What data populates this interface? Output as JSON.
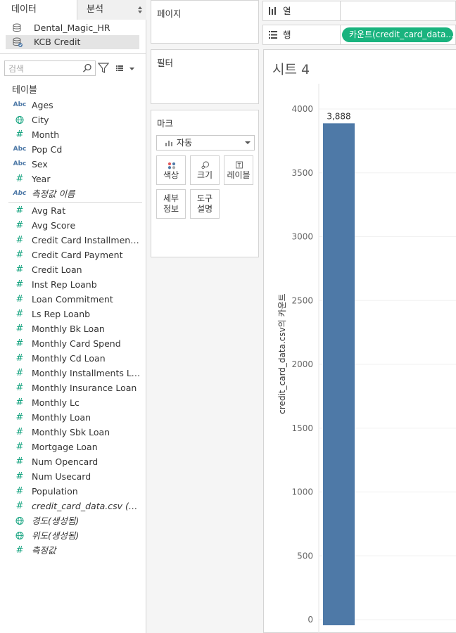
{
  "tabs": {
    "data": "데이터",
    "analysis": "분석"
  },
  "sources": [
    {
      "name": "Dental_Magic_HR",
      "selected": false
    },
    {
      "name": "KCB Credit",
      "selected": true
    }
  ],
  "search": {
    "placeholder": "검색"
  },
  "tables_label": "테이블",
  "fields_dimensions": [
    {
      "type": "abc",
      "name": "Ages"
    },
    {
      "type": "globe",
      "name": "City"
    },
    {
      "type": "hash",
      "name": "Month"
    },
    {
      "type": "abc",
      "name": "Pop Cd"
    },
    {
      "type": "abc",
      "name": "Sex"
    },
    {
      "type": "hash",
      "name": "Year"
    },
    {
      "type": "abc",
      "name": "측정값 이름",
      "italic": true
    }
  ],
  "fields_measures": [
    {
      "type": "hash",
      "name": "Avg Rat"
    },
    {
      "type": "hash",
      "name": "Avg Score"
    },
    {
      "type": "hash",
      "name": "Credit Card Installments P..."
    },
    {
      "type": "hash",
      "name": "Credit Card Payment"
    },
    {
      "type": "hash",
      "name": "Credit Loan"
    },
    {
      "type": "hash",
      "name": "Inst Rep Loanb"
    },
    {
      "type": "hash",
      "name": "Loan Commitment"
    },
    {
      "type": "hash",
      "name": "Ls Rep Loanb"
    },
    {
      "type": "hash",
      "name": "Monthly Bk Loan"
    },
    {
      "type": "hash",
      "name": "Monthly Card Spend"
    },
    {
      "type": "hash",
      "name": "Monthly Cd Loan"
    },
    {
      "type": "hash",
      "name": "Monthly Installments Loan"
    },
    {
      "type": "hash",
      "name": "Monthly Insurance Loan"
    },
    {
      "type": "hash",
      "name": "Monthly Lc"
    },
    {
      "type": "hash",
      "name": "Monthly Loan"
    },
    {
      "type": "hash",
      "name": "Monthly Sbk Loan"
    },
    {
      "type": "hash",
      "name": "Mortgage Loan"
    },
    {
      "type": "hash",
      "name": "Num Opencard"
    },
    {
      "type": "hash",
      "name": "Num Usecard"
    },
    {
      "type": "hash",
      "name": "Population"
    },
    {
      "type": "hash",
      "name": "credit_card_data.csv (카운트)",
      "italic": true
    },
    {
      "type": "globe",
      "name": "경도(생성됨)",
      "italic": true
    },
    {
      "type": "globe",
      "name": "위도(생성됨)",
      "italic": true
    },
    {
      "type": "hash",
      "name": "측정값",
      "italic": true
    }
  ],
  "shelves": {
    "pages": "페이지",
    "filters": "필터",
    "marks": "마크",
    "columns": "열",
    "rows": "행",
    "rows_pill": "카운트(credit_card_data..."
  },
  "marks": {
    "type": "자동",
    "buttons": {
      "color": "색상",
      "size": "크기",
      "label": "레이블",
      "detail": [
        "세부",
        "정보"
      ],
      "tooltip": [
        "도구",
        "설명"
      ]
    }
  },
  "sheet_title": "시트 4",
  "colors": {
    "bar": "#4e79a7",
    "pill": "#19b37e"
  },
  "chart_data": {
    "type": "bar",
    "categories": [
      ""
    ],
    "values": [
      3888
    ],
    "data_labels": [
      "3,888"
    ],
    "ylabel": "credit_card_data.csv의 카운트",
    "ylim": [
      0,
      4000
    ],
    "yticks": [
      0,
      500,
      1000,
      1500,
      2000,
      2500,
      3000,
      3500,
      4000
    ],
    "grid": true
  }
}
